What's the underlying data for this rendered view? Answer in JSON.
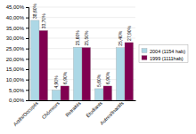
{
  "chart_data": {
    "type": "bar",
    "categories": [
      "Actifs/Occupés",
      "Chômeurs",
      "Retraités",
      "Étudiants",
      "Autres/Inactifs"
    ],
    "series": [
      {
        "name": "2004 (1154 hab)",
        "color": "#add8e6",
        "values": [
          38.6,
          4.9,
          25.6,
          5.6,
          25.4
        ],
        "value_labels": [
          "38,60%",
          "4,90%",
          "25,60%",
          "5,60%",
          "25,40%"
        ]
      },
      {
        "name": "1999 (1111hab)",
        "color": "#800050",
        "values": [
          33.7,
          6.9,
          25.5,
          6.9,
          27.9
        ],
        "value_labels": [
          "33,70%",
          "6,90%",
          "25,50%",
          "6,90%",
          "27,90%"
        ]
      }
    ],
    "ylim": [
      0,
      45
    ],
    "yticks": [
      {
        "value": 0,
        "label": "0,00%"
      },
      {
        "value": 5.0,
        "label": "5,00%"
      },
      {
        "value": 10.0,
        "label": "10,00%"
      },
      {
        "value": 15.0,
        "label": "15,00%"
      },
      {
        "value": 20.0,
        "label": "20,00%"
      },
      {
        "value": 25.0,
        "label": "25,00%"
      },
      {
        "value": 30.0,
        "label": "30,00%"
      },
      {
        "value": 35.0,
        "label": "35,00%"
      },
      {
        "value": 40.0,
        "label": "40,00%"
      },
      {
        "value": 45.0,
        "label": "45,00%"
      }
    ],
    "grid": true,
    "legend": "right",
    "data_labels": true
  }
}
